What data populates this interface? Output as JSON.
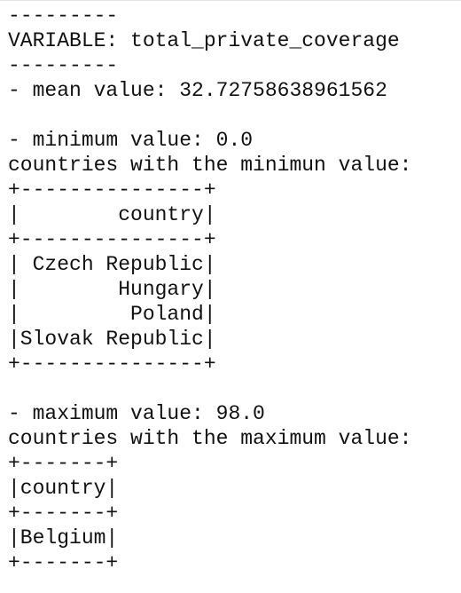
{
  "blocks": [
    [
      "---------",
      "VARIABLE: total_private_coverage",
      "---------",
      "- mean value: 32.72758638961562"
    ],
    [
      "- minimum value: 0.0",
      "countries with the minimun value:",
      "+---------------+",
      "|        country|",
      "+---------------+",
      "| Czech Republic|",
      "|        Hungary|",
      "|         Poland|",
      "|Slovak Republic|",
      "+---------------+"
    ],
    [
      "- maximum value: 98.0",
      "countries with the maximum value:",
      "+-------+",
      "|country|",
      "+-------+",
      "|Belgium|",
      "+-------+"
    ]
  ]
}
